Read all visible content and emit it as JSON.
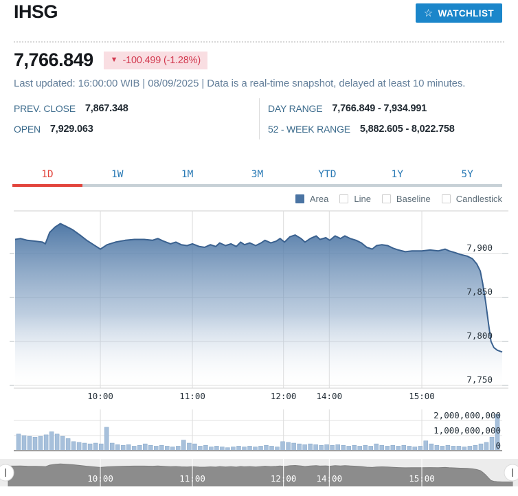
{
  "header": {
    "title": "IHSG",
    "watchlist": {
      "label": "WATCHLIST",
      "star_icon": "☆"
    }
  },
  "quote": {
    "price": "7,766.849",
    "direction": "down",
    "change_arrow": "▼",
    "change_text": "-100.499 (-1.28%)",
    "last_updated": "Last updated: 16:00:00 WIB | 08/09/2025 | Data is a real-time snapshot, delayed at least 10 minutes."
  },
  "stats": [
    {
      "label": "PREV. CLOSE",
      "value": "7,867.348"
    },
    {
      "label": "DAY RANGE",
      "value": "7,766.849 - 7,934.991"
    },
    {
      "label": "OPEN",
      "value": "7,929.063"
    },
    {
      "label": "52 - WEEK RANGE",
      "value": "5,882.605 - 8,022.758"
    }
  ],
  "range_tabs": {
    "labels": [
      "1D",
      "1W",
      "1M",
      "3M",
      "YTD",
      "1Y",
      "5Y"
    ],
    "active_index": 0
  },
  "legend": {
    "items": [
      {
        "label": "Area",
        "checked": true
      },
      {
        "label": "Line",
        "checked": false
      },
      {
        "label": "Baseline",
        "checked": false
      },
      {
        "label": "Candlestick",
        "checked": false
      }
    ]
  },
  "colors": {
    "accent_blue": "#1b86ca",
    "tab_active_red": "#e2443c",
    "tab_blue": "#2a7ab5",
    "badge_bg": "#f9dee2",
    "badge_text": "#d23a50",
    "stat_label_blue": "#3d6c8d",
    "area_fill_top": "#4a74a3",
    "area_line": "#3a618f",
    "volume_bar": "#a7c0db",
    "navigator_gray": "#8c8c8c",
    "gridline": "#dcdcdc"
  },
  "chart_data": [
    {
      "type": "area",
      "title": "IHSG intraday price (1D)",
      "x_ticks": [
        {
          "label": "10:00",
          "f": 0.175
        },
        {
          "label": "11:00",
          "f": 0.364
        },
        {
          "label": "12:00",
          "f": 0.551
        },
        {
          "label": "14:00",
          "f": 0.645
        },
        {
          "label": "15:00",
          "f": 0.835
        }
      ],
      "y_ticks": [
        {
          "label": "7,900",
          "v": 7900
        },
        {
          "label": "7,850",
          "v": 7850
        },
        {
          "label": "7,800",
          "v": 7800
        },
        {
          "label": "7,750",
          "v": 7750
        }
      ],
      "ylim": [
        7744,
        7950
      ],
      "points": [
        [
          0.0,
          7916
        ],
        [
          0.011,
          7917
        ],
        [
          0.025,
          7915
        ],
        [
          0.042,
          7914
        ],
        [
          0.056,
          7913
        ],
        [
          0.062,
          7911
        ],
        [
          0.071,
          7924
        ],
        [
          0.082,
          7930
        ],
        [
          0.093,
          7934
        ],
        [
          0.104,
          7931
        ],
        [
          0.118,
          7927
        ],
        [
          0.133,
          7921
        ],
        [
          0.147,
          7915
        ],
        [
          0.161,
          7910
        ],
        [
          0.175,
          7905
        ],
        [
          0.189,
          7910
        ],
        [
          0.206,
          7913
        ],
        [
          0.226,
          7915
        ],
        [
          0.245,
          7916
        ],
        [
          0.265,
          7916
        ],
        [
          0.282,
          7915
        ],
        [
          0.293,
          7917
        ],
        [
          0.305,
          7914
        ],
        [
          0.319,
          7911
        ],
        [
          0.33,
          7913
        ],
        [
          0.341,
          7910
        ],
        [
          0.353,
          7909
        ],
        [
          0.364,
          7911
        ],
        [
          0.378,
          7908
        ],
        [
          0.389,
          7907
        ],
        [
          0.401,
          7910
        ],
        [
          0.412,
          7908
        ],
        [
          0.42,
          7912
        ],
        [
          0.432,
          7909
        ],
        [
          0.443,
          7911
        ],
        [
          0.454,
          7908
        ],
        [
          0.463,
          7913
        ],
        [
          0.471,
          7910
        ],
        [
          0.482,
          7912
        ],
        [
          0.494,
          7909
        ],
        [
          0.505,
          7912
        ],
        [
          0.513,
          7915
        ],
        [
          0.525,
          7912
        ],
        [
          0.536,
          7914
        ],
        [
          0.544,
          7917
        ],
        [
          0.553,
          7913
        ],
        [
          0.564,
          7919
        ],
        [
          0.575,
          7921
        ],
        [
          0.587,
          7917
        ],
        [
          0.595,
          7913
        ],
        [
          0.606,
          7917
        ],
        [
          0.618,
          7920
        ],
        [
          0.626,
          7916
        ],
        [
          0.638,
          7918
        ],
        [
          0.646,
          7915
        ],
        [
          0.657,
          7920
        ],
        [
          0.668,
          7917
        ],
        [
          0.677,
          7920
        ],
        [
          0.688,
          7917
        ],
        [
          0.7,
          7915
        ],
        [
          0.711,
          7912
        ],
        [
          0.722,
          7907
        ],
        [
          0.733,
          7905
        ],
        [
          0.742,
          7909
        ],
        [
          0.753,
          7910
        ],
        [
          0.765,
          7909
        ],
        [
          0.776,
          7906
        ],
        [
          0.787,
          7904
        ],
        [
          0.801,
          7902
        ],
        [
          0.815,
          7903
        ],
        [
          0.835,
          7903
        ],
        [
          0.852,
          7904
        ],
        [
          0.869,
          7903
        ],
        [
          0.883,
          7905
        ],
        [
          0.891,
          7903
        ],
        [
          0.903,
          7901
        ],
        [
          0.914,
          7899
        ],
        [
          0.928,
          7897
        ],
        [
          0.939,
          7894
        ],
        [
          0.948,
          7888
        ],
        [
          0.955,
          7880
        ],
        [
          0.96,
          7866
        ],
        [
          0.966,
          7845
        ],
        [
          0.972,
          7820
        ],
        [
          0.977,
          7800
        ],
        [
          0.983,
          7793
        ],
        [
          0.99,
          7790
        ],
        [
          1.0,
          7788
        ]
      ]
    },
    {
      "type": "bar",
      "title": "Volume",
      "y_ticks": [
        {
          "label": "2,000,000,000",
          "v": 2000000000
        },
        {
          "label": "1,000,000,000",
          "v": 1000000000
        },
        {
          "label": "0",
          "v": 0
        }
      ],
      "ylim": [
        0,
        2600000000
      ],
      "unit": "billion shares",
      "values_billion": [
        1.1,
        1.0,
        0.95,
        0.9,
        0.95,
        1.05,
        1.25,
        1.1,
        0.95,
        0.8,
        0.6,
        0.55,
        0.5,
        0.45,
        0.5,
        0.45,
        1.55,
        0.5,
        0.4,
        0.35,
        0.4,
        0.3,
        0.35,
        0.45,
        0.35,
        0.3,
        0.35,
        0.3,
        0.25,
        0.3,
        0.7,
        0.5,
        0.45,
        0.3,
        0.35,
        0.25,
        0.3,
        0.25,
        0.2,
        0.25,
        0.3,
        0.25,
        0.3,
        0.25,
        0.3,
        0.35,
        0.3,
        0.25,
        0.6,
        0.55,
        0.5,
        0.45,
        0.4,
        0.45,
        0.4,
        0.35,
        0.4,
        0.35,
        0.4,
        0.35,
        0.3,
        0.35,
        0.3,
        0.35,
        0.3,
        0.45,
        0.35,
        0.3,
        0.35,
        0.3,
        0.35,
        0.3,
        0.25,
        0.3,
        0.65,
        0.45,
        0.35,
        0.3,
        0.35,
        0.3,
        0.3,
        0.25,
        0.3,
        0.35,
        0.45,
        0.55,
        0.9,
        2.4
      ]
    },
    {
      "type": "area",
      "title": "Navigator (session overview, mirrors price series)",
      "x_ticks": [
        {
          "label": "10:00",
          "f": 0.175
        },
        {
          "label": "11:00",
          "f": 0.364
        },
        {
          "label": "12:00",
          "f": 0.551
        },
        {
          "label": "14:00",
          "f": 0.645
        },
        {
          "label": "15:00",
          "f": 0.835
        }
      ],
      "points_ref": "chart_data[0].points"
    }
  ]
}
